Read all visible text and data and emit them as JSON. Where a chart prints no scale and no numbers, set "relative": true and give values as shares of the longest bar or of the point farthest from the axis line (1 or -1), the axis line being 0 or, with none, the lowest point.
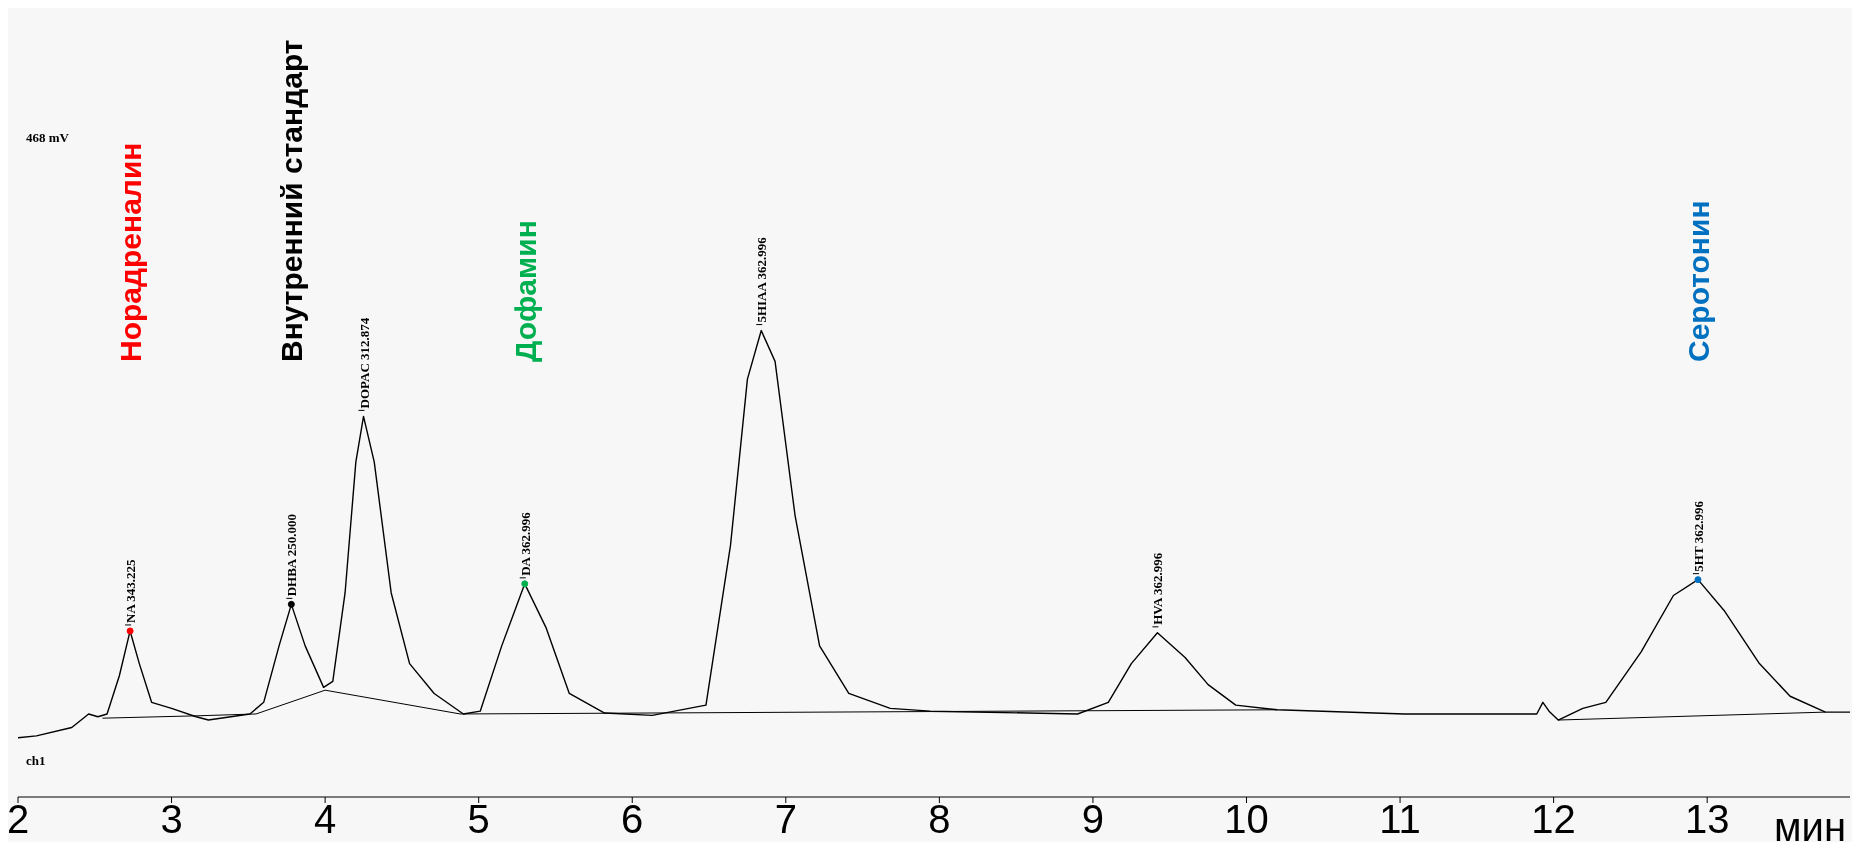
{
  "chart_data": {
    "type": "line",
    "relative": true,
    "xlabel": "мин",
    "xlim": [
      2,
      13.93
    ],
    "xticks": [
      2,
      3,
      4,
      5,
      6,
      7,
      8,
      9,
      10,
      11,
      12,
      13
    ],
    "grid": false,
    "line_style": "solid",
    "series": [
      {
        "color": "#000000",
        "x": [
          2,
          2.12,
          2.35,
          2.46,
          2.52,
          2.58,
          2.66,
          2.73,
          2.79,
          2.87,
          3.0,
          3.16,
          3.24,
          3.51,
          3.6,
          3.7,
          3.78,
          3.87,
          3.99,
          4.05,
          4.13,
          4.2,
          4.25,
          4.32,
          4.43,
          4.55,
          4.71,
          4.9,
          5.01,
          5.15,
          5.3,
          5.44,
          5.59,
          5.82,
          6.13,
          6.48,
          6.64,
          6.75,
          6.84,
          6.93,
          7.06,
          7.22,
          7.41,
          7.68,
          7.94,
          8.9,
          9.1,
          9.25,
          9.42,
          9.6,
          9.75,
          9.93,
          10.2,
          11.03,
          11.8,
          11.89,
          11.93,
          11.97,
          12.03,
          12.19,
          12.34,
          12.57,
          12.78,
          12.94,
          13.11,
          13.34,
          13.54,
          13.77,
          13.93
        ],
        "values": [
          0.127,
          0.131,
          0.149,
          0.178,
          0.172,
          0.178,
          0.26,
          0.356,
          0.286,
          0.203,
          0.19,
          0.172,
          0.165,
          0.178,
          0.203,
          0.324,
          0.413,
          0.324,
          0.235,
          0.248,
          0.438,
          0.718,
          0.816,
          0.718,
          0.438,
          0.286,
          0.222,
          0.178,
          0.184,
          0.324,
          0.457,
          0.362,
          0.222,
          0.18,
          0.175,
          0.197,
          0.54,
          0.896,
          1.0,
          0.934,
          0.604,
          0.324,
          0.222,
          0.19,
          0.184,
          0.178,
          0.203,
          0.286,
          0.352,
          0.299,
          0.241,
          0.197,
          0.187,
          0.178,
          0.178,
          0.178,
          0.203,
          0.184,
          0.165,
          0.19,
          0.203,
          0.311,
          0.432,
          0.466,
          0.4,
          0.286,
          0.216,
          0.182,
          0.182
        ]
      },
      {
        "color": "#000000",
        "x": [
          2.55,
          3.16,
          3.55,
          4.0,
          4.88,
          10.2
        ],
        "values": [
          0.169,
          0.174,
          0.178,
          0.229,
          0.178,
          0.187
        ]
      },
      {
        "color": "#000000",
        "x": [
          12.03,
          13.77
        ],
        "values": [
          0.165,
          0.182
        ]
      },
      {
        "type": "scatter",
        "marker": "circle",
        "name": "Норадреналин",
        "color": "#ff0000",
        "x": [
          2.73
        ],
        "values": [
          0.356
        ]
      },
      {
        "type": "scatter",
        "marker": "circle",
        "name": "Внутренний стандарт",
        "color": "#000000",
        "x": [
          3.78
        ],
        "values": [
          0.413
        ]
      },
      {
        "type": "scatter",
        "marker": "circle",
        "name": "Дофамин",
        "color": "#00b050",
        "x": [
          5.3
        ],
        "values": [
          0.457
        ]
      },
      {
        "type": "scatter",
        "marker": "circle",
        "name": "Серотонин",
        "color": "#0070c0",
        "x": [
          12.94
        ],
        "values": [
          0.466
        ]
      }
    ],
    "annotations": [
      "468 mV",
      "ch1",
      {
        "text": "NA 343.225",
        "x": 2.73,
        "y": 0.356
      },
      {
        "text": "DHBA 250.000",
        "x": 3.78,
        "y": 0.413
      },
      {
        "text": "DOPAC 312.874",
        "x": 4.25,
        "y": 0.816
      },
      {
        "text": "DA 362.996",
        "x": 5.3,
        "y": 0.457
      },
      {
        "text": "5HIAA 362.996",
        "x": 6.84,
        "y": 1.0
      },
      {
        "text": "HVA 362.996",
        "x": 9.42,
        "y": 0.352
      },
      {
        "text": "5HT 362.996",
        "x": 12.94,
        "y": 0.466
      }
    ]
  }
}
